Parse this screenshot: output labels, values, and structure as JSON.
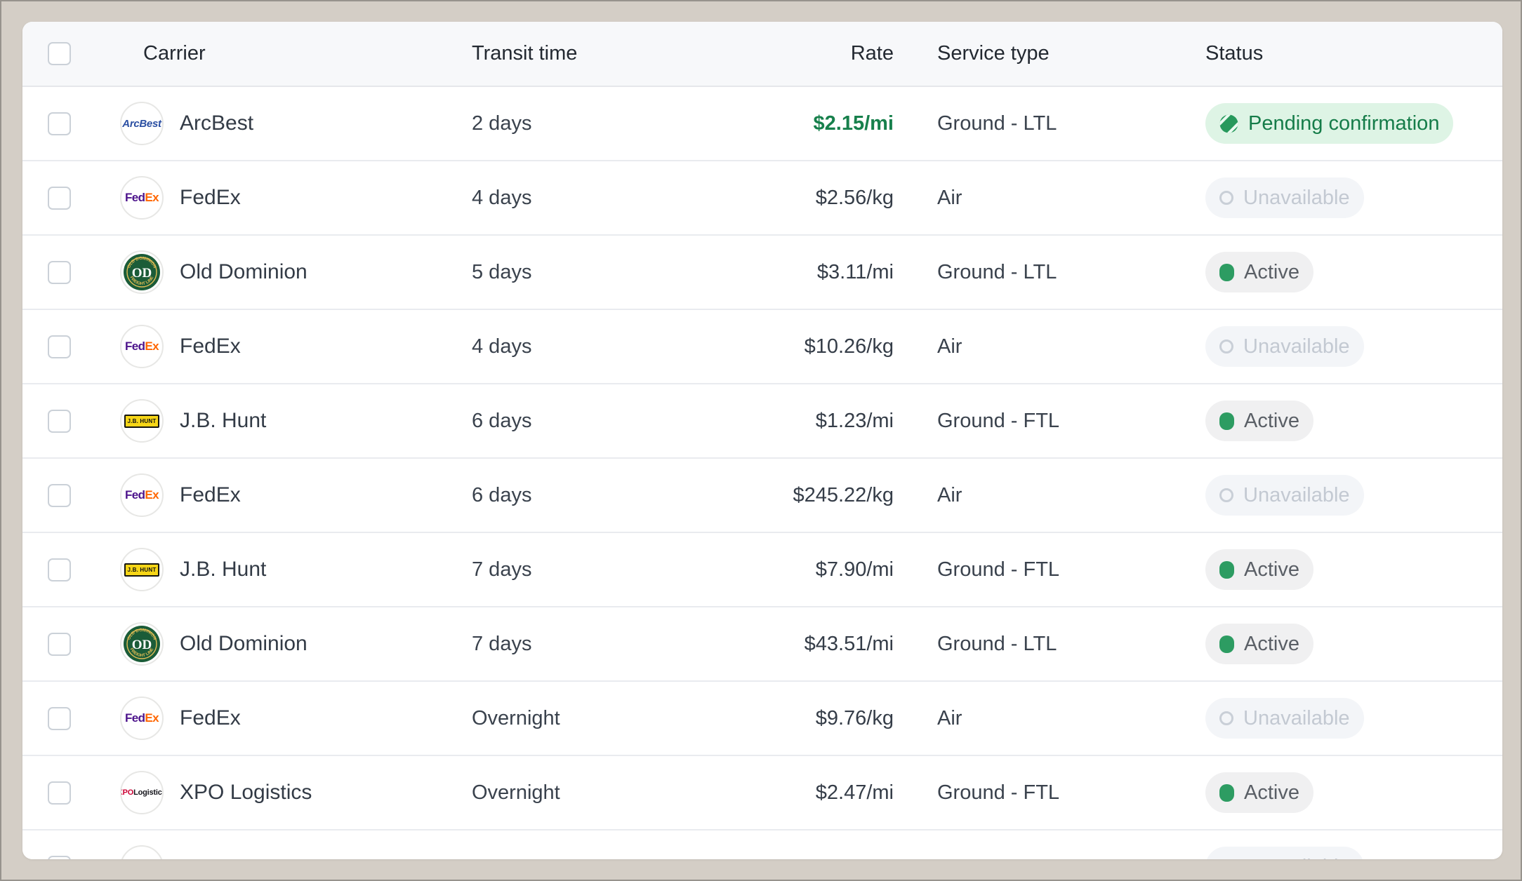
{
  "table": {
    "columns": [
      {
        "key": "carrier",
        "label": "Carrier"
      },
      {
        "key": "transit",
        "label": "Transit time"
      },
      {
        "key": "rate",
        "label": "Rate"
      },
      {
        "key": "service",
        "label": "Service type"
      },
      {
        "key": "status",
        "label": "Status"
      }
    ],
    "rows": [
      {
        "carrier": "ArcBest",
        "logo": "arcbest",
        "transit": "2 days",
        "rate": "$2.15/mi",
        "rate_highlight": true,
        "service": "Ground - LTL",
        "status": {
          "kind": "pending",
          "label": "Pending confirmation"
        }
      },
      {
        "carrier": "FedEx",
        "logo": "fedex",
        "transit": "4 days",
        "rate": "$2.56/kg",
        "rate_highlight": false,
        "service": "Air",
        "status": {
          "kind": "unavailable",
          "label": "Unavailable"
        }
      },
      {
        "carrier": "Old Dominion",
        "logo": "old-dominion",
        "transit": "5 days",
        "rate": "$3.11/mi",
        "rate_highlight": false,
        "service": "Ground - LTL",
        "status": {
          "kind": "active",
          "label": "Active"
        }
      },
      {
        "carrier": "FedEx",
        "logo": "fedex",
        "transit": "4 days",
        "rate": "$10.26/kg",
        "rate_highlight": false,
        "service": "Air",
        "status": {
          "kind": "unavailable",
          "label": "Unavailable"
        }
      },
      {
        "carrier": "J.B. Hunt",
        "logo": "jb-hunt",
        "transit": "6 days",
        "rate": "$1.23/mi",
        "rate_highlight": false,
        "service": "Ground - FTL",
        "status": {
          "kind": "active",
          "label": "Active"
        }
      },
      {
        "carrier": "FedEx",
        "logo": "fedex",
        "transit": "6 days",
        "rate": "$245.22/kg",
        "rate_highlight": false,
        "service": "Air",
        "status": {
          "kind": "unavailable",
          "label": "Unavailable"
        }
      },
      {
        "carrier": "J.B. Hunt",
        "logo": "jb-hunt",
        "transit": "7 days",
        "rate": "$7.90/mi",
        "rate_highlight": false,
        "service": "Ground - FTL",
        "status": {
          "kind": "active",
          "label": "Active"
        }
      },
      {
        "carrier": "Old Dominion",
        "logo": "old-dominion",
        "transit": "7 days",
        "rate": "$43.51/mi",
        "rate_highlight": false,
        "service": "Ground - LTL",
        "status": {
          "kind": "active",
          "label": "Active"
        }
      },
      {
        "carrier": "FedEx",
        "logo": "fedex",
        "transit": "Overnight",
        "rate": "$9.76/kg",
        "rate_highlight": false,
        "service": "Air",
        "status": {
          "kind": "unavailable",
          "label": "Unavailable"
        }
      },
      {
        "carrier": "XPO Logistics",
        "logo": "xpo",
        "transit": "Overnight",
        "rate": "$2.47/mi",
        "rate_highlight": false,
        "service": "Ground - FTL",
        "status": {
          "kind": "active",
          "label": "Active"
        }
      },
      {
        "carrier": "",
        "logo": "empty",
        "transit": "",
        "rate": "",
        "rate_highlight": false,
        "service": "",
        "status": {
          "kind": "unavailable",
          "label": "Unavailable"
        },
        "partial": true
      }
    ]
  },
  "logos": {
    "arcbest": {
      "text": "ArcBest",
      "color": "#2b4fa2"
    },
    "fedex": {
      "parts": [
        "Fed",
        "Ex"
      ],
      "colors": [
        "#4d148c",
        "#ff6600"
      ]
    },
    "old-dominion": {
      "monogram": "OD",
      "arc_top": "OLD DOMINION",
      "arc_bottom": "FREIGHT LINE",
      "colors": [
        "#1b5c38",
        "#e0bc55"
      ]
    },
    "jb-hunt": {
      "text": "J.B. HUNT",
      "colors": [
        "#f7d617",
        "#111111"
      ]
    },
    "xpo": {
      "parts": [
        "XPO",
        "Logistics"
      ],
      "colors": [
        "#cc0033",
        "#14141a"
      ]
    }
  },
  "colors": {
    "page_background": "#d4cec6",
    "frame_border": "#97938d",
    "card_background": "#ffffff",
    "header_background": "#f7f8fa",
    "divider": "#e9ebef",
    "rate_highlight": "#17804c",
    "pending_background": "#def4e5",
    "pending_text": "#157c49",
    "pending_icon": "#27995c",
    "unavailable_background": "#f3f5f8",
    "unavailable_text": "#c3c9d2",
    "active_background": "#f0f0f1",
    "active_text": "#5a5f66",
    "active_dot": "#2d9c62"
  }
}
